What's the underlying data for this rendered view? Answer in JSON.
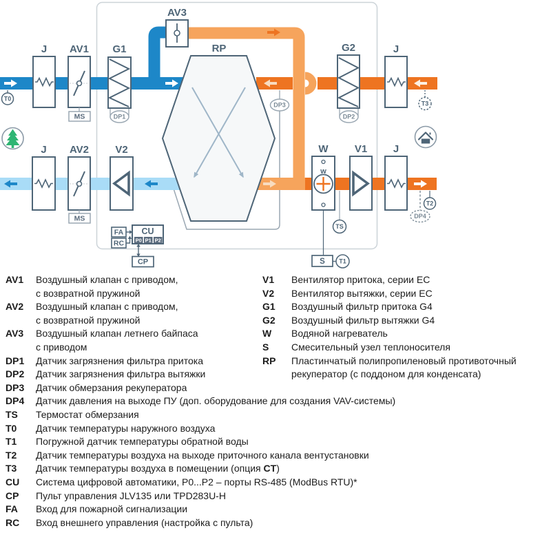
{
  "diagram": {
    "labels": {
      "j": "J",
      "av1": "AV1",
      "av2": "AV2",
      "av3": "AV3",
      "g1": "G1",
      "g2": "G2",
      "rp": "RP",
      "v1": "V1",
      "v2": "V2",
      "w": "W",
      "w_inner": "w",
      "ms": "MS",
      "s": "S",
      "cu": "CU",
      "cp": "CP",
      "fa": "FA",
      "rc": "RC",
      "p0": "P0",
      "p1": "P1",
      "p2": "P2"
    },
    "sensors": {
      "t0": "T0",
      "t1": "T1",
      "t2": "T2",
      "t3": "T3",
      "ts": "TS",
      "dp1": "DP1",
      "dp2": "DP2",
      "dp3": "DP3",
      "dp4": "DP4"
    },
    "colors": {
      "supply_blue": "#1d87c8",
      "exhaust_light_blue": "#a9dcf7",
      "extract_orange": "#ee7421",
      "bypass_light_orange": "#f6a45c",
      "outline_slate": "#4e6577",
      "connector_gray": "#9aa7b2",
      "tree_green": "#2eb573"
    }
  },
  "legend": {
    "left": [
      {
        "key": "AV1",
        "segs": [
          {
            "t": "Воздушный клапан с приводом,\nс возвратной пружиной"
          }
        ]
      },
      {
        "key": "AV2",
        "segs": [
          {
            "t": "Воздушный клапан с приводом,\nс возвратной пружиной"
          }
        ]
      },
      {
        "key": "AV3",
        "segs": [
          {
            "t": "Воздушный клапан летнего байпаса\nс приводом"
          }
        ]
      },
      {
        "key": "DP1",
        "segs": [
          {
            "t": "Датчик загрязнения фильтра притока"
          }
        ]
      },
      {
        "key": "DP2",
        "segs": [
          {
            "t": "Датчик загрязнения фильтра вытяжки"
          }
        ]
      },
      {
        "key": "DP3",
        "segs": [
          {
            "t": "Датчик обмерзания рекуператора"
          }
        ]
      },
      {
        "key": "DP4",
        "segs": [
          {
            "t": "Датчик давления на выходе ПУ (доп. оборудование для создания VAV-системы)"
          }
        ]
      },
      {
        "key": "TS",
        "segs": [
          {
            "t": "Термостат обмерзания"
          }
        ]
      },
      {
        "key": "T0",
        "segs": [
          {
            "t": "Датчик температуры наружного воздуха"
          }
        ]
      },
      {
        "key": "T1",
        "segs": [
          {
            "t": "Погружной датчик температуры обратной воды"
          }
        ]
      },
      {
        "key": "T2",
        "segs": [
          {
            "t": "Датчик температуры воздуха на выходе приточного канала вентустановки"
          }
        ]
      },
      {
        "key": "T3",
        "segs": [
          {
            "t": "Датчик температуры воздуха в помещении (опция "
          },
          {
            "t": "CT",
            "b": true
          },
          {
            "t": ")"
          }
        ]
      },
      {
        "key": "CU",
        "segs": [
          {
            "t": "Система цифровой автоматики, P0...P2 – порты RS-485 (ModBus RTU)*"
          }
        ]
      },
      {
        "key": "CP",
        "segs": [
          {
            "t": "Пульт управления JLV135 или TPD283U-H"
          }
        ]
      },
      {
        "key": "FA",
        "segs": [
          {
            "t": "Вход для пожарной сигнализации"
          }
        ]
      },
      {
        "key": "RC",
        "segs": [
          {
            "t": "Вход внешнего управления (настройка с пульта)"
          }
        ]
      }
    ],
    "right": [
      {
        "key": "V1",
        "segs": [
          {
            "t": "Вентилятор притока, серии EC"
          }
        ]
      },
      {
        "key": "V2",
        "segs": [
          {
            "t": "Вентилятор вытяжки, серии EC"
          }
        ]
      },
      {
        "key": "G1",
        "segs": [
          {
            "t": "Воздушный фильтр притока G4"
          }
        ]
      },
      {
        "key": "G2",
        "segs": [
          {
            "t": "Воздушный фильтр вытяжки G4"
          }
        ]
      },
      {
        "key": "W",
        "segs": [
          {
            "t": "Водяной нагреватель"
          }
        ]
      },
      {
        "key": "S",
        "segs": [
          {
            "t": "Смесительный узел теплоносителя"
          }
        ]
      },
      {
        "key": "RP",
        "segs": [
          {
            "t": "Пластинчатый полипропиленовый противоточный\nрекуператор (с поддоном для конденсата)"
          }
        ]
      }
    ]
  }
}
